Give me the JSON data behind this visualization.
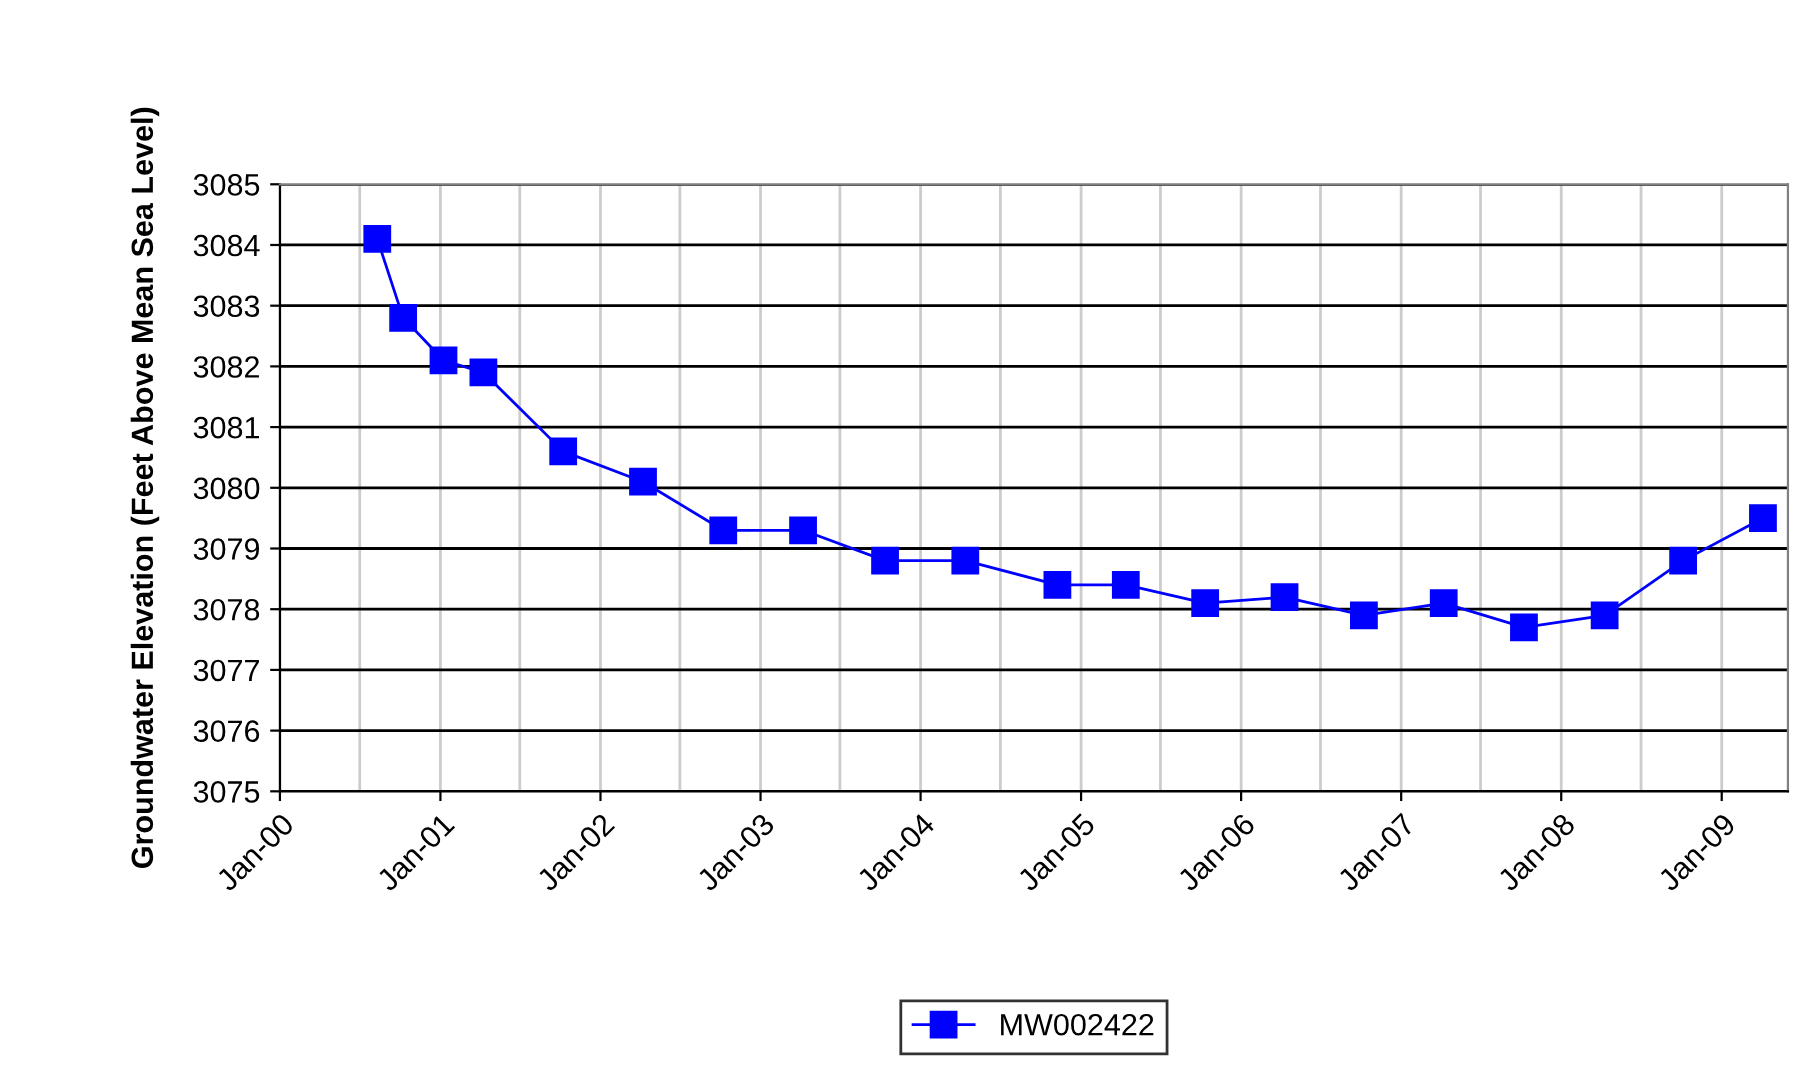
{
  "chart_data": {
    "type": "line",
    "ylabel": "Groundwater Elevation (Feet Above Mean Sea Level)",
    "x": [
      "2000-08-10",
      "2000-10-08",
      "2001-01-08",
      "2001-04-09",
      "2001-10-08",
      "2002-04-08",
      "2002-10-08",
      "2003-04-08",
      "2003-10-12",
      "2004-04-12",
      "2004-11-08",
      "2005-04-13",
      "2005-10-11",
      "2006-04-10",
      "2006-10-08",
      "2007-04-08",
      "2007-10-08",
      "2008-04-09",
      "2008-10-05",
      "2009-04-05"
    ],
    "series": [
      {
        "name": "MW002422",
        "color": "#0000ff",
        "values": [
          3084.1,
          3082.8,
          3082.1,
          3081.9,
          3080.6,
          3080.1,
          3079.3,
          3079.3,
          3078.8,
          3078.8,
          3078.4,
          3078.4,
          3078.1,
          3078.2,
          3077.9,
          3078.1,
          3077.7,
          3077.9,
          3078.8,
          3079.5
        ]
      }
    ],
    "xlim": [
      "2000-01-01",
      "2009-06-01"
    ],
    "xticks": [
      {
        "value": "2000-01-01",
        "label": "Jan-00"
      },
      {
        "value": "2000-07-01",
        "label": null
      },
      {
        "value": "2001-01-01",
        "label": "Jan-01"
      },
      {
        "value": "2001-07-01",
        "label": null
      },
      {
        "value": "2002-01-01",
        "label": "Jan-02"
      },
      {
        "value": "2002-07-01",
        "label": null
      },
      {
        "value": "2003-01-01",
        "label": "Jan-03"
      },
      {
        "value": "2003-07-01",
        "label": null
      },
      {
        "value": "2004-01-01",
        "label": "Jan-04"
      },
      {
        "value": "2004-07-01",
        "label": null
      },
      {
        "value": "2005-01-01",
        "label": "Jan-05"
      },
      {
        "value": "2005-07-01",
        "label": null
      },
      {
        "value": "2006-01-01",
        "label": "Jan-06"
      },
      {
        "value": "2006-07-01",
        "label": null
      },
      {
        "value": "2007-01-01",
        "label": "Jan-07"
      },
      {
        "value": "2007-07-01",
        "label": null
      },
      {
        "value": "2008-01-01",
        "label": "Jan-08"
      },
      {
        "value": "2008-07-01",
        "label": null
      },
      {
        "value": "2009-01-01",
        "label": "Jan-09"
      }
    ],
    "ylim": [
      3075,
      3085
    ],
    "yticks": [
      3075,
      3076,
      3077,
      3078,
      3079,
      3080,
      3081,
      3082,
      3083,
      3084,
      3085
    ],
    "grid": true,
    "legend": "bottom",
    "marker": "square",
    "line_style": "solid"
  }
}
